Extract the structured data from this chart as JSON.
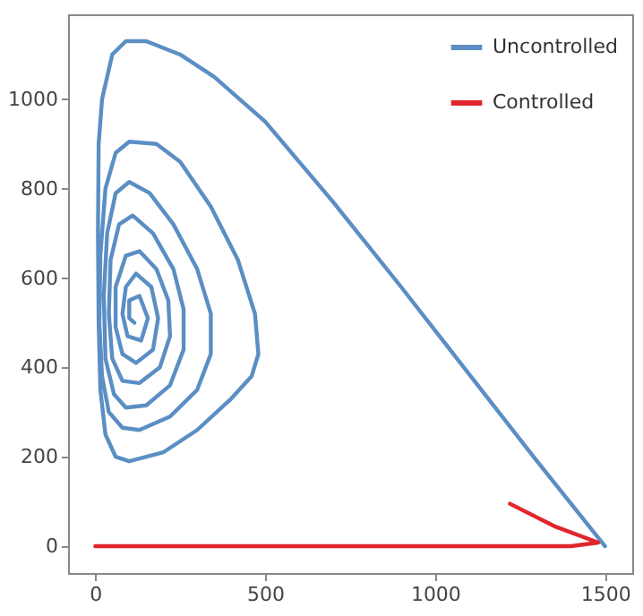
{
  "chart_data": {
    "type": "line",
    "xlim": [
      -80,
      1580
    ],
    "ylim": [
      -60,
      1190
    ],
    "xticks": [
      0,
      500,
      1000,
      1500
    ],
    "yticks": [
      0,
      200,
      400,
      600,
      800,
      1000
    ],
    "grid": false,
    "legend": "top right",
    "marker": "none",
    "line_style": "solid",
    "series": [
      {
        "name": "Uncontrolled",
        "color": "#5b8ec4",
        "x": [
          1500,
          1300,
          1100,
          900,
          700,
          500,
          350,
          250,
          150,
          90,
          50,
          20,
          10,
          8,
          10,
          15,
          30,
          60,
          100,
          200,
          300,
          400,
          460,
          480,
          470,
          420,
          340,
          250,
          180,
          100,
          60,
          30,
          15,
          12,
          20,
          40,
          80,
          130,
          220,
          300,
          340,
          340,
          300,
          230,
          160,
          100,
          60,
          35,
          25,
          30,
          55,
          90,
          150,
          220,
          260,
          260,
          230,
          170,
          110,
          70,
          45,
          40,
          50,
          80,
          130,
          190,
          220,
          215,
          180,
          130,
          90,
          60,
          60,
          80,
          120,
          170,
          185,
          165,
          120,
          90,
          80,
          95,
          135,
          155,
          130,
          100,
          100,
          115
        ],
        "values": [
          0,
          190,
          385,
          580,
          770,
          950,
          1050,
          1100,
          1130,
          1130,
          1100,
          1000,
          900,
          700,
          500,
          350,
          250,
          200,
          190,
          210,
          260,
          330,
          380,
          430,
          520,
          640,
          760,
          860,
          900,
          905,
          880,
          800,
          650,
          500,
          380,
          300,
          265,
          260,
          290,
          350,
          430,
          520,
          620,
          720,
          790,
          815,
          790,
          700,
          560,
          420,
          340,
          310,
          315,
          360,
          440,
          530,
          620,
          700,
          740,
          720,
          640,
          520,
          420,
          370,
          365,
          400,
          470,
          550,
          620,
          660,
          650,
          580,
          490,
          430,
          410,
          440,
          510,
          580,
          610,
          580,
          520,
          470,
          460,
          510,
          560,
          550,
          510,
          500
        ]
      },
      {
        "name": "Controlled",
        "color": "#e0262b",
        "x": [
          1220,
          1350,
          1480,
          1400,
          0
        ],
        "values": [
          95,
          45,
          8,
          0,
          0
        ]
      }
    ]
  }
}
